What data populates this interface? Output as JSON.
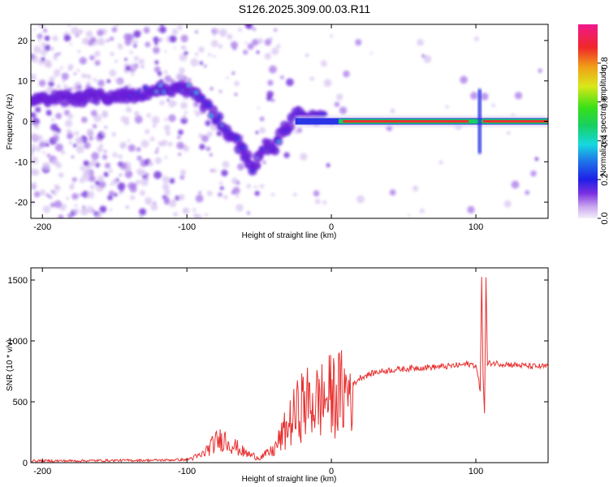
{
  "chart_data": [
    {
      "type": "heatmap",
      "title": "S126.2025.309.00.03.R11",
      "xlabel": "Height of straight line (km)",
      "ylabel": "Frequency (Hz)",
      "xlim": [
        -208,
        150
      ],
      "ylim": [
        -24,
        24
      ],
      "xticks": [
        -200,
        -100,
        0,
        100
      ],
      "yticks": [
        -20,
        -10,
        0,
        10,
        20
      ],
      "colorbar": {
        "label": "Normalized spectral amplitude",
        "range": [
          0,
          1
        ],
        "ticks": [
          "0.0",
          "0.2",
          "0.4",
          "0.6",
          "0.8"
        ],
        "tick_values": [
          0.0,
          0.2,
          0.4,
          0.6,
          0.8
        ]
      },
      "ridge": {
        "x": [
          -208,
          -180,
          -160,
          -140,
          -125,
          -110,
          -100,
          -92,
          -85,
          -78,
          -70,
          -62,
          -55,
          -50,
          -45,
          -40,
          -35,
          -30,
          -25,
          -20,
          -15,
          -10,
          -5,
          0,
          10,
          30,
          60,
          80,
          90,
          100,
          104,
          110,
          130,
          150
        ],
        "freq": [
          5,
          6,
          6,
          6.5,
          7.5,
          8,
          8,
          6,
          3,
          0,
          -3,
          -7,
          -12,
          -9,
          -6,
          -7,
          -3,
          -1,
          2,
          2,
          1,
          1,
          1,
          0.5,
          0,
          0,
          0,
          0,
          0.2,
          0,
          0,
          0,
          0,
          0
        ]
      }
    },
    {
      "type": "line",
      "xlabel": "Height of straight line (km)",
      "ylabel": "SNR (10 * v/v)",
      "xlim": [
        -208,
        150
      ],
      "ylim": [
        0,
        1600
      ],
      "xticks": [
        -200,
        -100,
        0,
        100
      ],
      "yticks": [
        0,
        500,
        1000,
        1500
      ],
      "color": "#e83030",
      "series": [
        {
          "name": "SNR",
          "x": [
            -208,
            -180,
            -150,
            -120,
            -100,
            -90,
            -80,
            -75,
            -70,
            -65,
            -60,
            -50,
            -40,
            -30,
            -20,
            -10,
            0,
            10,
            20,
            30,
            40,
            60,
            80,
            95,
            100,
            103,
            104,
            105,
            106,
            107,
            108,
            110,
            120,
            130,
            140,
            150
          ],
          "values": [
            15,
            15,
            18,
            20,
            25,
            60,
            170,
            200,
            160,
            120,
            80,
            40,
            100,
            300,
            480,
            500,
            550,
            580,
            700,
            740,
            760,
            780,
            790,
            810,
            800,
            600,
            1550,
            700,
            420,
            1520,
            800,
            820,
            810,
            800,
            790,
            790
          ]
        }
      ]
    }
  ]
}
